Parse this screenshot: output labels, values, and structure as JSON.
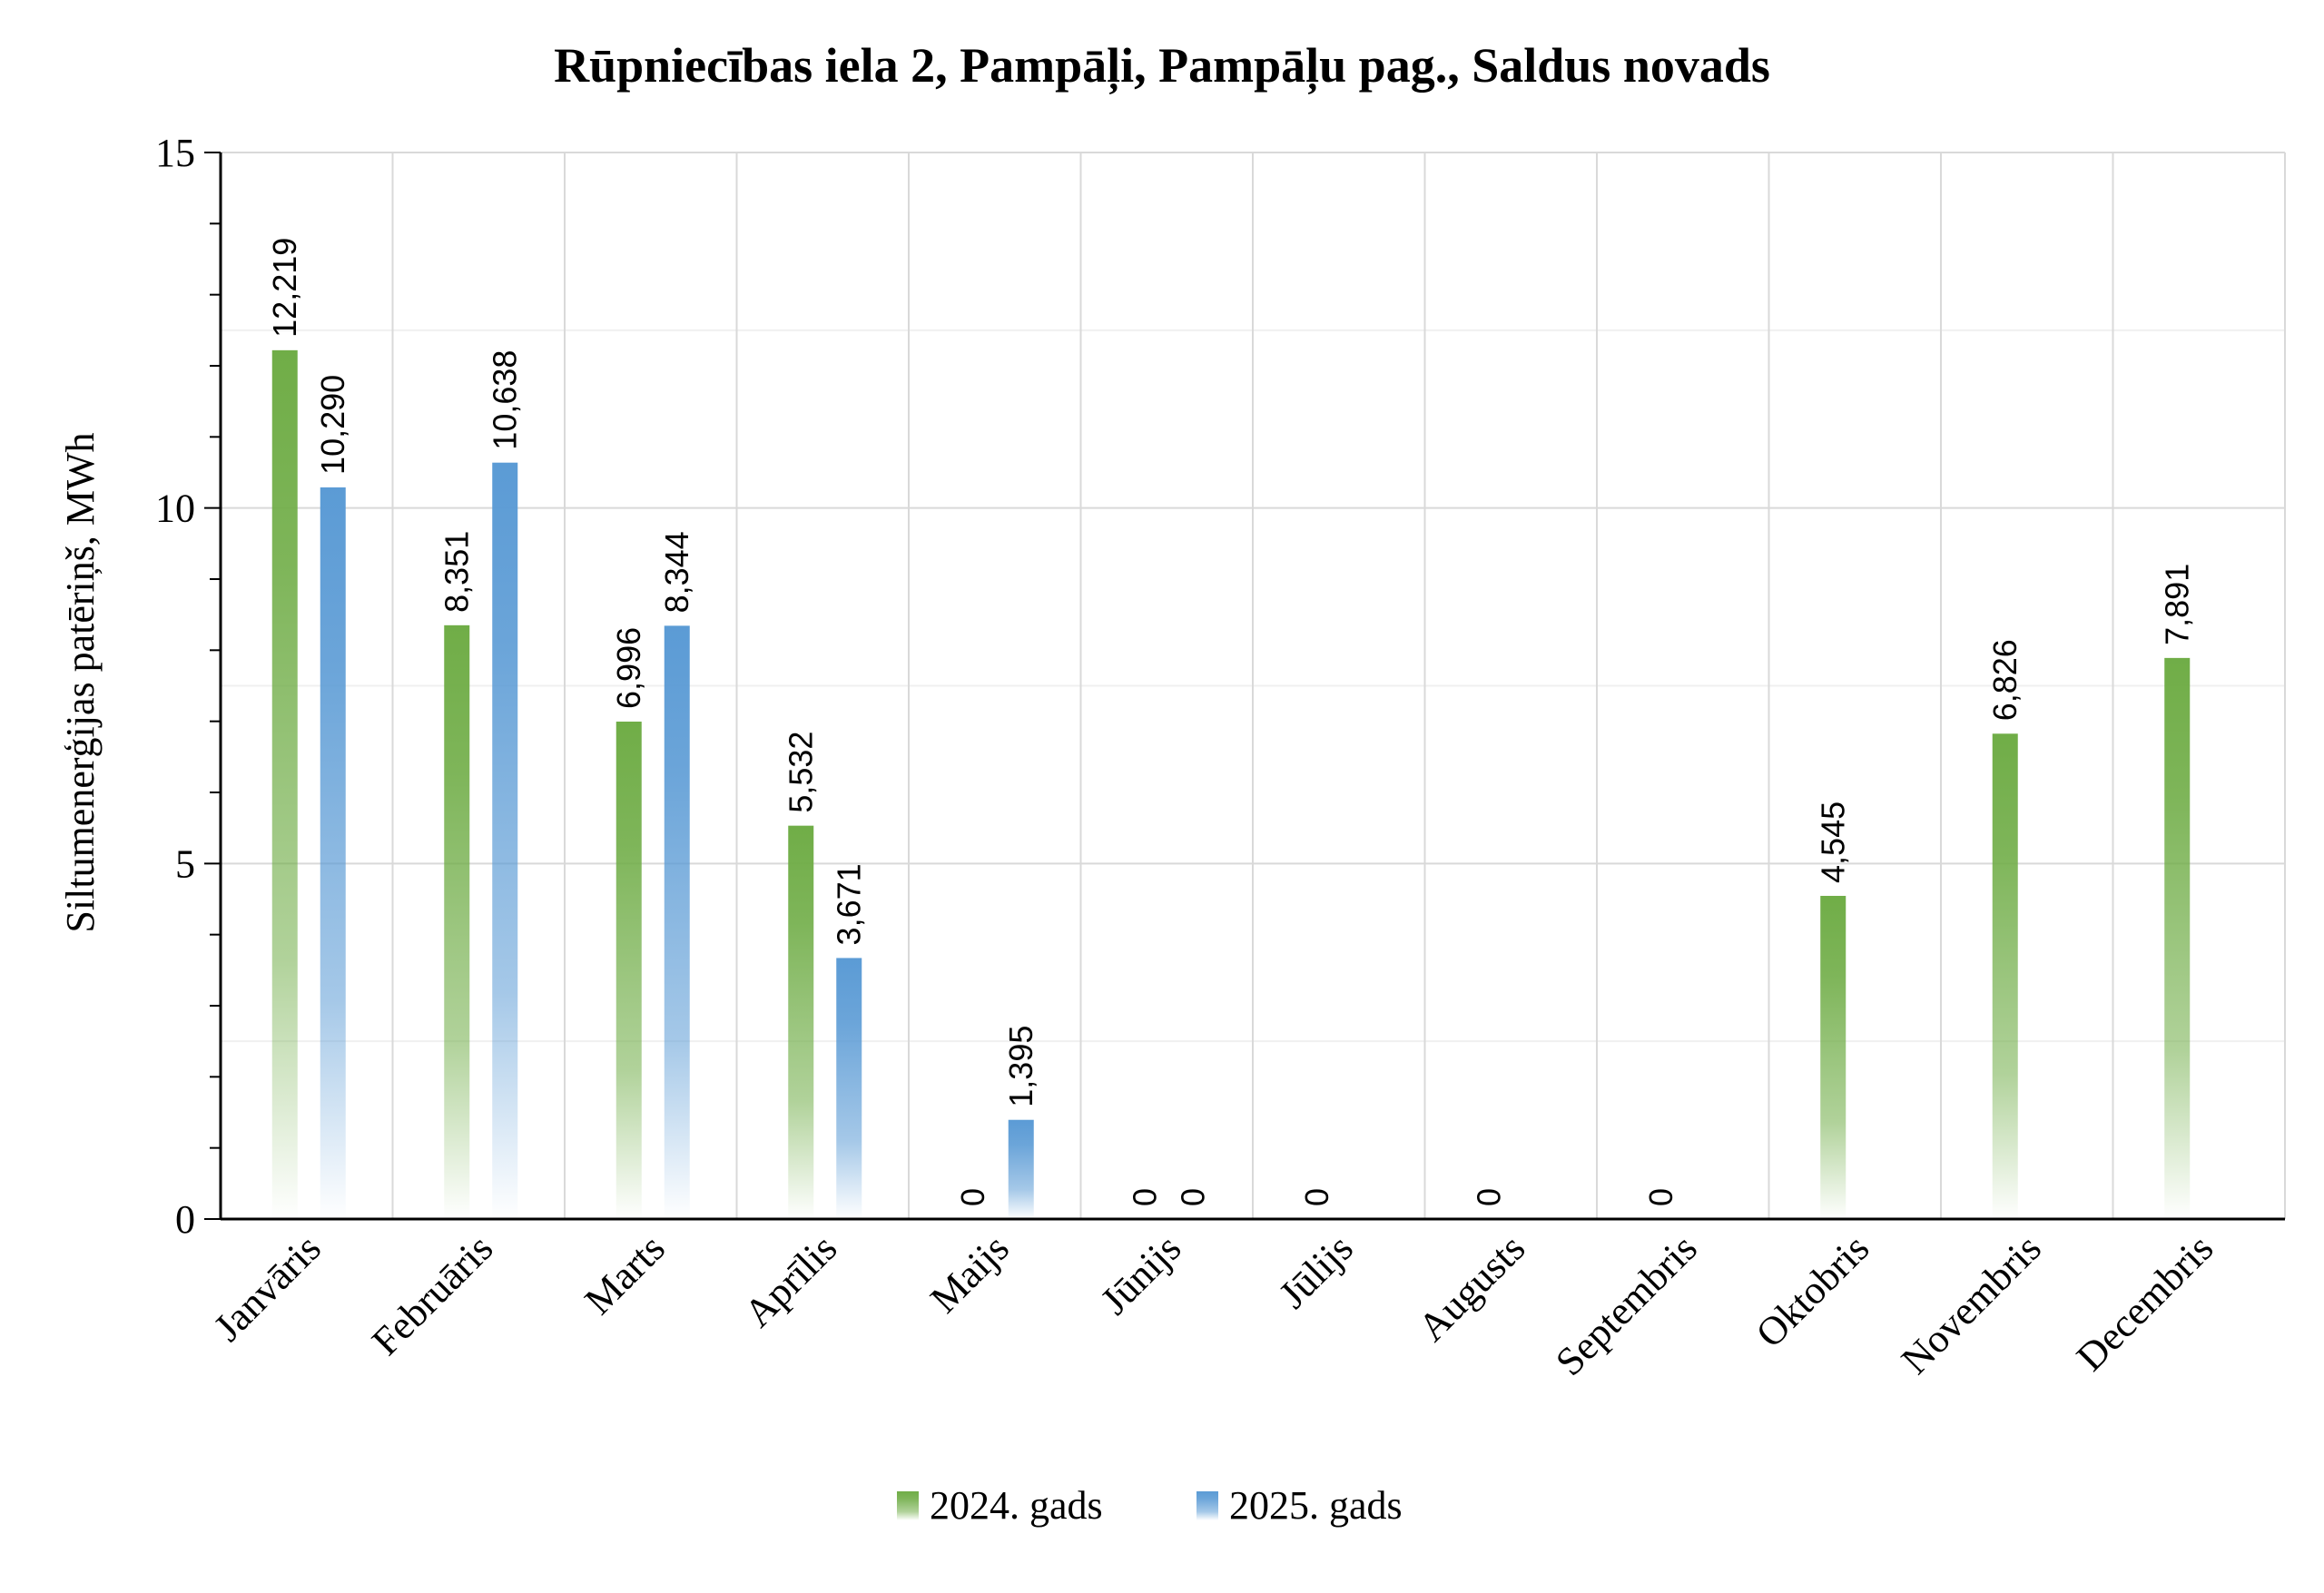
{
  "chart_data": {
    "type": "bar",
    "title": "Rūpniecības iela 2, Pampāļi, Pampāļu pag., Saldus novads",
    "xlabel": "",
    "ylabel": "Siltumenerģijas patēriņš, MWh",
    "ylim": [
      0,
      15
    ],
    "yticks": [
      "0",
      "5",
      "10",
      "15"
    ],
    "grid": true,
    "legend_position": "bottom",
    "categories": [
      "Janvāris",
      "Februāris",
      "Marts",
      "Aprīlis",
      "Maijs",
      "Jūnijs",
      "Jūlijs",
      "Augusts",
      "Septembris",
      "Oktobris",
      "Novembris",
      "Decembris"
    ],
    "series": [
      {
        "name": "2024. gads",
        "color": "#70ad47",
        "values": [
          12.219,
          8.351,
          6.996,
          5.532,
          0,
          0,
          0,
          0,
          0,
          4.545,
          6.826,
          7.891
        ],
        "labels": [
          "12,219",
          "8,351",
          "6,996",
          "5,532",
          "0",
          "0",
          "0",
          "0",
          "0",
          "4,545",
          "6,826",
          "7,891"
        ]
      },
      {
        "name": "2025. gads",
        "color": "#5b9bd5",
        "values": [
          10.29,
          10.638,
          8.344,
          3.671,
          1.395,
          0,
          null,
          null,
          null,
          null,
          null,
          null
        ],
        "labels": [
          "10,290",
          "10,638",
          "8,344",
          "3,671",
          "1,395",
          "0",
          "",
          "",
          "",
          "",
          "",
          ""
        ]
      }
    ]
  }
}
